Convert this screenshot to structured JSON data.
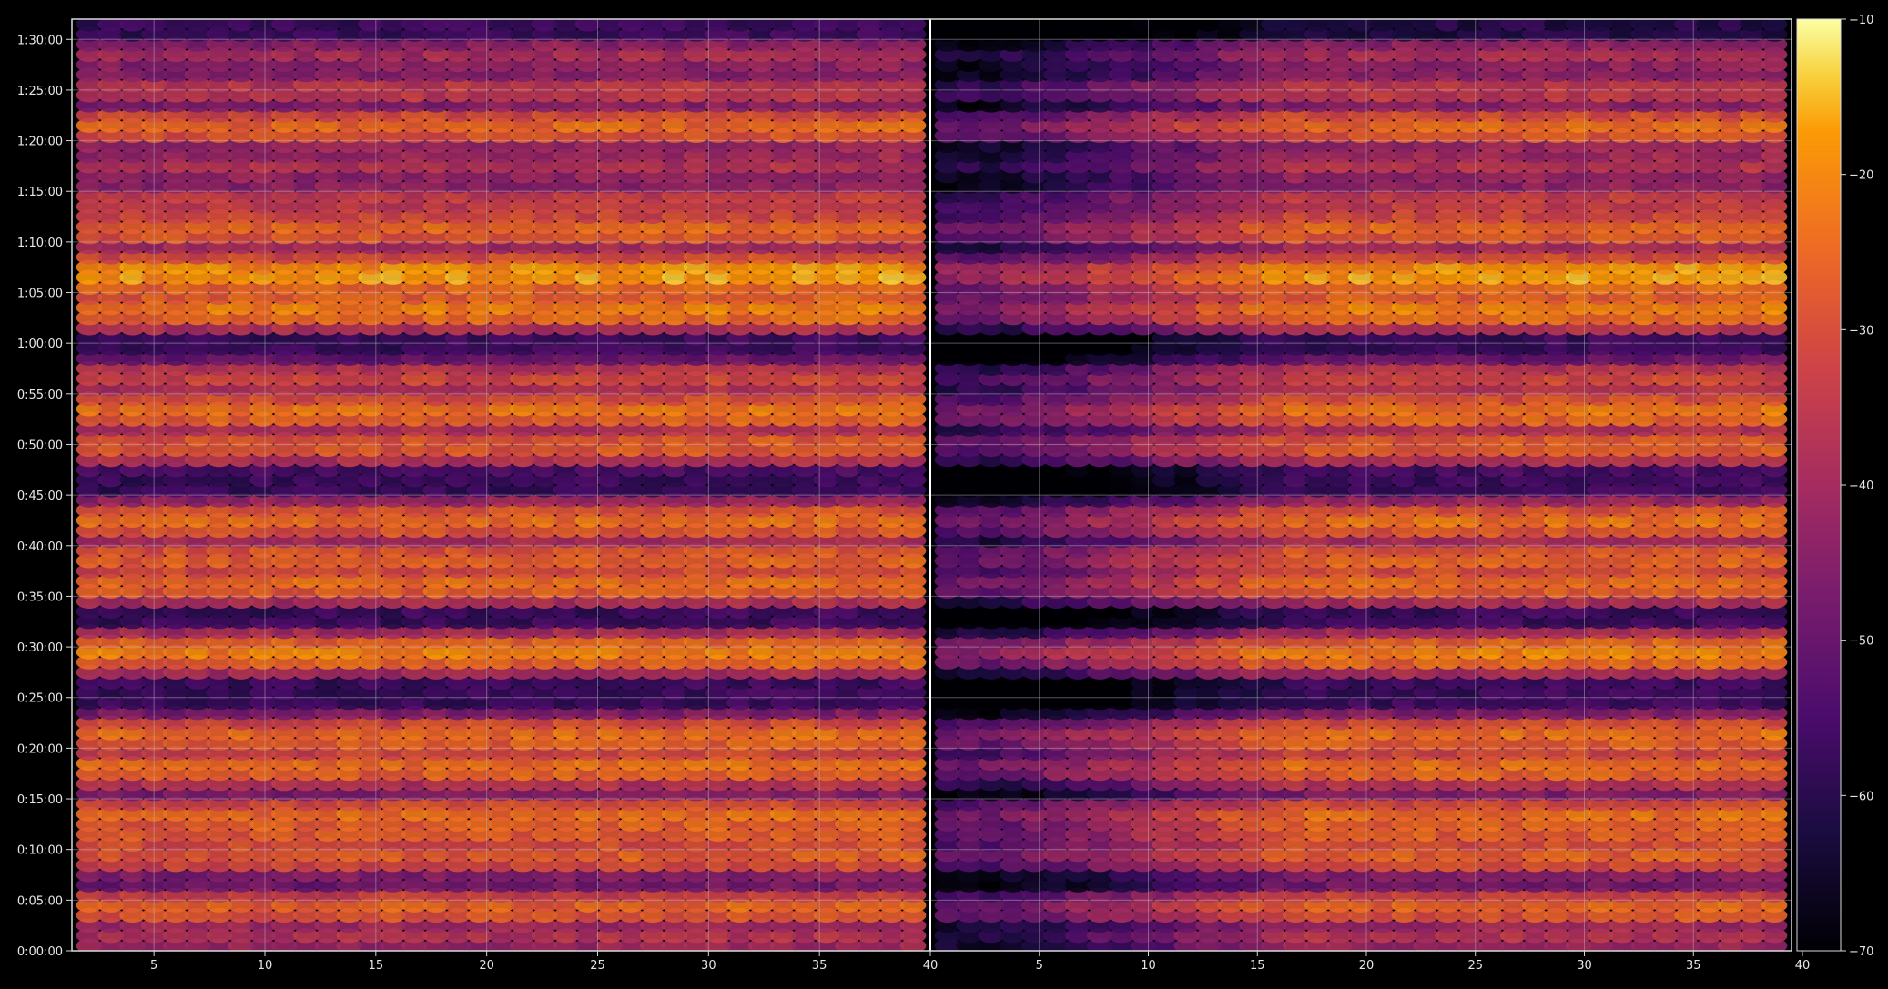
{
  "chart_data": {
    "type": "heatmap",
    "title": "",
    "xlabel": "",
    "ylabel": "",
    "colormap": "inferno",
    "background": "#000000",
    "grid": true,
    "grid_color": "#bdbdbd",
    "frame_color": "#d9d9d9",
    "x_tick_labels": [
      "5",
      "10",
      "15",
      "20",
      "25",
      "30",
      "35",
      "40",
      "5",
      "10",
      "15",
      "20",
      "25",
      "30",
      "35",
      "40"
    ],
    "y_tick_labels": [
      "0:00:00",
      "0:05:00",
      "0:10:00",
      "0:15:00",
      "0:20:00",
      "0:25:00",
      "0:30:00",
      "0:35:00",
      "0:40:00",
      "0:45:00",
      "0:50:00",
      "0:55:00",
      "1:00:00",
      "1:05:00",
      "1:10:00",
      "1:15:00",
      "1:20:00",
      "1:25:00",
      "1:30:00"
    ],
    "panels": [
      {
        "x_range": [
          1.3,
          40
        ],
        "channels": 39,
        "level": "left"
      },
      {
        "x_range": [
          0,
          39.5
        ],
        "channels": 39,
        "level": "right"
      }
    ],
    "y_range": [
      0,
      92
    ],
    "time_rows": 92,
    "colorbar": {
      "range": [
        -70,
        -10
      ],
      "tick_labels": [
        "-10",
        "-20",
        "-30",
        "-40",
        "-50",
        "-60",
        "-70"
      ]
    },
    "bright_bands_minutes": [
      {
        "t": 1.5,
        "level": -38
      },
      {
        "t": 4.3,
        "level": -27
      },
      {
        "t": 9.5,
        "level": -28
      },
      {
        "t": 11.3,
        "level": -28
      },
      {
        "t": 13.3,
        "level": -25
      },
      {
        "t": 18.2,
        "level": -25
      },
      {
        "t": 21.3,
        "level": -25
      },
      {
        "t": 29.5,
        "level": -22
      },
      {
        "t": 36.3,
        "level": -25
      },
      {
        "t": 38.8,
        "level": -27
      },
      {
        "t": 42.5,
        "level": -25
      },
      {
        "t": 50.0,
        "level": -28
      },
      {
        "t": 53.3,
        "level": -24
      },
      {
        "t": 56.5,
        "level": -33
      },
      {
        "t": 63.4,
        "level": -22
      },
      {
        "t": 66.8,
        "level": -18
      },
      {
        "t": 71.3,
        "level": -26
      },
      {
        "t": 74.0,
        "level": -34
      },
      {
        "t": 77.6,
        "level": -38
      },
      {
        "t": 81.4,
        "level": -26
      },
      {
        "t": 85.0,
        "level": -35
      },
      {
        "t": 88.5,
        "level": -40
      }
    ]
  }
}
